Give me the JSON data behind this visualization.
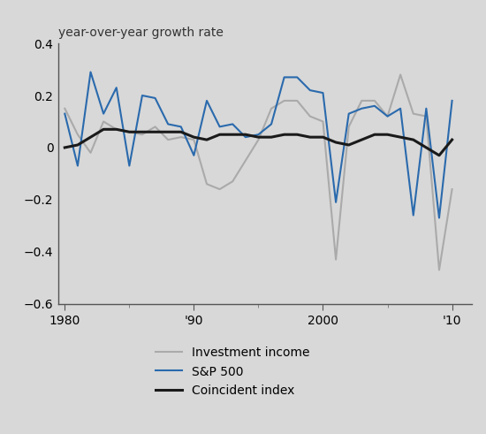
{
  "years": [
    1980,
    1981,
    1982,
    1983,
    1984,
    1985,
    1986,
    1987,
    1988,
    1989,
    1990,
    1991,
    1992,
    1993,
    1994,
    1995,
    1996,
    1997,
    1998,
    1999,
    2000,
    2001,
    2002,
    2003,
    2004,
    2005,
    2006,
    2007,
    2008,
    2009,
    2010
  ],
  "investment_income": [
    0.15,
    0.05,
    -0.02,
    0.1,
    0.07,
    0.06,
    0.05,
    0.08,
    0.03,
    0.04,
    0.03,
    -0.14,
    -0.16,
    -0.13,
    -0.05,
    0.03,
    0.15,
    0.18,
    0.18,
    0.12,
    0.1,
    -0.43,
    0.08,
    0.18,
    0.18,
    0.12,
    0.28,
    0.13,
    0.12,
    -0.47,
    -0.16
  ],
  "sp500": [
    0.13,
    -0.07,
    0.29,
    0.13,
    0.23,
    -0.07,
    0.2,
    0.19,
    0.09,
    0.08,
    -0.03,
    0.18,
    0.08,
    0.09,
    0.04,
    0.05,
    0.09,
    0.27,
    0.27,
    0.22,
    0.21,
    -0.21,
    0.13,
    0.15,
    0.16,
    0.12,
    0.15,
    -0.26,
    0.15,
    -0.27,
    0.18
  ],
  "coincident": [
    0.0,
    0.01,
    0.04,
    0.07,
    0.07,
    0.06,
    0.06,
    0.06,
    0.06,
    0.06,
    0.04,
    0.03,
    0.05,
    0.05,
    0.05,
    0.04,
    0.04,
    0.05,
    0.05,
    0.04,
    0.04,
    0.02,
    0.01,
    0.03,
    0.05,
    0.05,
    0.04,
    0.03,
    0.0,
    -0.03,
    0.03
  ],
  "investment_income_color": "#aaaaaa",
  "sp500_color": "#2a6aad",
  "coincident_color": "#1a1a1a",
  "background_color": "#d8d8d8",
  "plot_bg_color": "#d8d8d8",
  "ylabel": "year-over-year growth rate",
  "ylim": [
    -0.6,
    0.4
  ],
  "yticks": [
    -0.6,
    -0.4,
    -0.2,
    0.0,
    0.2,
    0.4
  ],
  "xlim": [
    1979.5,
    2011.5
  ],
  "xticks": [
    1980,
    1990,
    2000,
    2010
  ],
  "xticklabels": [
    "1980",
    "'90",
    "2000",
    "'10"
  ],
  "legend_labels": [
    "Investment income",
    "S&P 500",
    "Coincident index"
  ]
}
